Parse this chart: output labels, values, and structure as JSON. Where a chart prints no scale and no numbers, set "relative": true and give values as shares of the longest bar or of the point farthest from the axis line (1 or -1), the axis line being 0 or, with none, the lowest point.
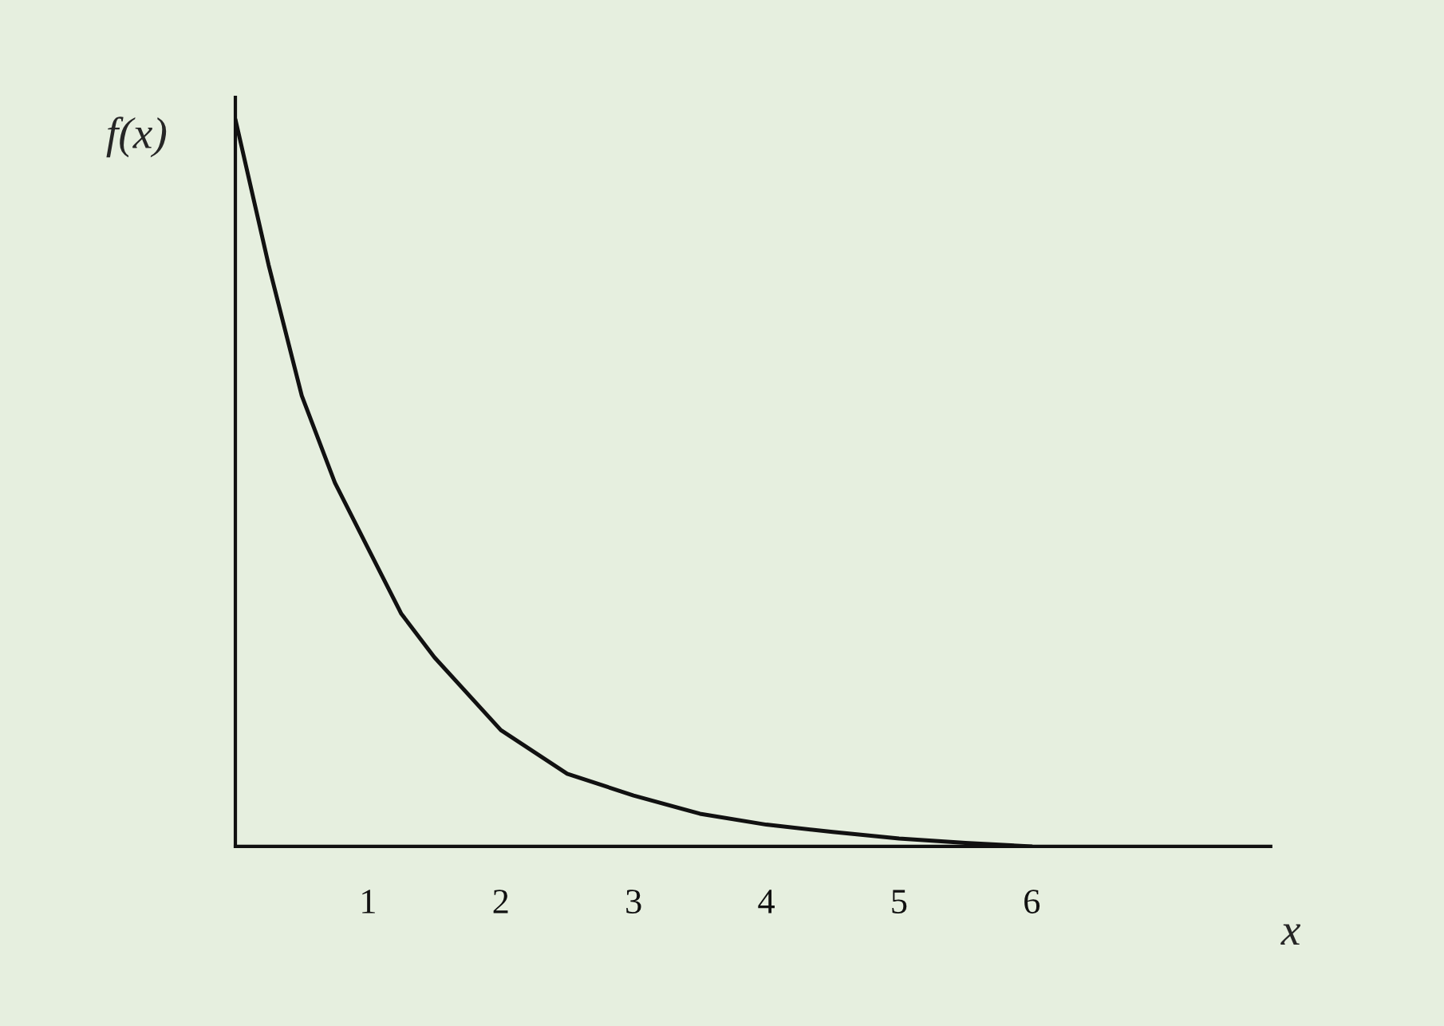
{
  "chart_data": {
    "type": "line",
    "relative": true,
    "xlabel": "x",
    "ylabel": "f(x)",
    "xlim": [
      0,
      7.8
    ],
    "xticks": [
      1,
      2,
      3,
      4,
      5,
      6
    ],
    "series": [
      {
        "color": "#111111",
        "x": [
          0,
          0.25,
          0.5,
          0.75,
          1,
          1.25,
          1.5,
          2,
          2.5,
          3,
          3.5,
          4,
          4.5,
          5,
          5.5,
          6
        ],
        "values": [
          1,
          0.8,
          0.62,
          0.5,
          0.41,
          0.32,
          0.26,
          0.16,
          0.1,
          0.07,
          0.045,
          0.03,
          0.02,
          0.011,
          0.005,
          0
        ]
      }
    ],
    "grid": false,
    "marker": "none",
    "line_style": "solid"
  }
}
